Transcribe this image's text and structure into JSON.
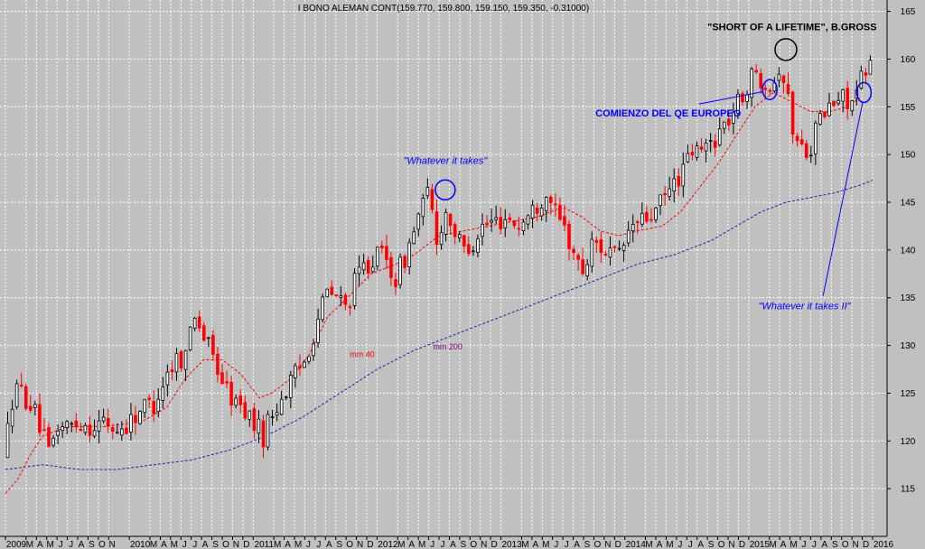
{
  "chart_data": {
    "type": "candlestick",
    "title": "I BONO ALEMAN CONT(159.770, 159.800, 159.150, 159.350, -0.31000)",
    "ylim": [
      110,
      166
    ],
    "yticks": [
      115,
      120,
      125,
      130,
      135,
      140,
      145,
      150,
      155,
      160,
      165
    ],
    "x_range": [
      2009.0,
      2016.0
    ],
    "grid": true,
    "colors": {
      "background": "#c0c0c0",
      "up": "#000000",
      "down": "#ff0000",
      "mm40": "#ff0000",
      "mm200": "#2a1f9a",
      "annotation": "#0000ff"
    },
    "x_tick_labels": [
      {
        "t": 2009.0,
        "label": "2009"
      },
      {
        "t": 2009.1667,
        "label": "M"
      },
      {
        "t": 2009.25,
        "label": "A"
      },
      {
        "t": 2009.3333,
        "label": "M"
      },
      {
        "t": 2009.4167,
        "label": "J"
      },
      {
        "t": 2009.5,
        "label": "J"
      },
      {
        "t": 2009.5833,
        "label": "A"
      },
      {
        "t": 2009.6667,
        "label": "S"
      },
      {
        "t": 2009.75,
        "label": "O"
      },
      {
        "t": 2009.8333,
        "label": "N"
      },
      {
        "t": 2010.0,
        "label": "2010"
      },
      {
        "t": 2010.1667,
        "label": "M"
      },
      {
        "t": 2010.25,
        "label": "A"
      },
      {
        "t": 2010.3333,
        "label": "M"
      },
      {
        "t": 2010.4167,
        "label": "J"
      },
      {
        "t": 2010.5,
        "label": "J"
      },
      {
        "t": 2010.5833,
        "label": "A"
      },
      {
        "t": 2010.6667,
        "label": "S"
      },
      {
        "t": 2010.75,
        "label": "O"
      },
      {
        "t": 2010.8333,
        "label": "N"
      },
      {
        "t": 2010.9167,
        "label": "D"
      },
      {
        "t": 2011.0,
        "label": "2011"
      },
      {
        "t": 2011.1667,
        "label": "M"
      },
      {
        "t": 2011.25,
        "label": "A"
      },
      {
        "t": 2011.3333,
        "label": "M"
      },
      {
        "t": 2011.4167,
        "label": "J"
      },
      {
        "t": 2011.5,
        "label": "J"
      },
      {
        "t": 2011.5833,
        "label": "A"
      },
      {
        "t": 2011.6667,
        "label": "S"
      },
      {
        "t": 2011.75,
        "label": "O"
      },
      {
        "t": 2011.8333,
        "label": "N"
      },
      {
        "t": 2011.9167,
        "label": "D"
      },
      {
        "t": 2012.0,
        "label": "2012"
      },
      {
        "t": 2012.1667,
        "label": "M"
      },
      {
        "t": 2012.25,
        "label": "A"
      },
      {
        "t": 2012.3333,
        "label": "M"
      },
      {
        "t": 2012.4167,
        "label": "J"
      },
      {
        "t": 2012.5,
        "label": "J"
      },
      {
        "t": 2012.5833,
        "label": "A"
      },
      {
        "t": 2012.6667,
        "label": "S"
      },
      {
        "t": 2012.75,
        "label": "O"
      },
      {
        "t": 2012.8333,
        "label": "N"
      },
      {
        "t": 2012.9167,
        "label": "D"
      },
      {
        "t": 2013.0,
        "label": "2013"
      },
      {
        "t": 2013.1667,
        "label": "M"
      },
      {
        "t": 2013.25,
        "label": "A"
      },
      {
        "t": 2013.3333,
        "label": "M"
      },
      {
        "t": 2013.4167,
        "label": "J"
      },
      {
        "t": 2013.5,
        "label": "J"
      },
      {
        "t": 2013.5833,
        "label": "A"
      },
      {
        "t": 2013.6667,
        "label": "S"
      },
      {
        "t": 2013.75,
        "label": "O"
      },
      {
        "t": 2013.8333,
        "label": "N"
      },
      {
        "t": 2013.9167,
        "label": "D"
      },
      {
        "t": 2014.0,
        "label": "2014"
      },
      {
        "t": 2014.1667,
        "label": "M"
      },
      {
        "t": 2014.25,
        "label": "A"
      },
      {
        "t": 2014.3333,
        "label": "M"
      },
      {
        "t": 2014.4167,
        "label": "J"
      },
      {
        "t": 2014.5,
        "label": "J"
      },
      {
        "t": 2014.5833,
        "label": "A"
      },
      {
        "t": 2014.6667,
        "label": "S"
      },
      {
        "t": 2014.75,
        "label": "O"
      },
      {
        "t": 2014.8333,
        "label": "N"
      },
      {
        "t": 2014.9167,
        "label": "D"
      },
      {
        "t": 2015.0,
        "label": "2015"
      },
      {
        "t": 2015.1667,
        "label": "M"
      },
      {
        "t": 2015.25,
        "label": "A"
      },
      {
        "t": 2015.3333,
        "label": "M"
      },
      {
        "t": 2015.4167,
        "label": "J"
      },
      {
        "t": 2015.5,
        "label": "J"
      },
      {
        "t": 2015.5833,
        "label": "A"
      },
      {
        "t": 2015.6667,
        "label": "S"
      },
      {
        "t": 2015.75,
        "label": "O"
      },
      {
        "t": 2015.8333,
        "label": "N"
      },
      {
        "t": 2015.9167,
        "label": "D"
      },
      {
        "t": 2016.0,
        "label": "2016"
      }
    ],
    "price_path": [
      {
        "t": 2009.0,
        "v": 118.5
      },
      {
        "t": 2009.04,
        "v": 124.0
      },
      {
        "t": 2009.1,
        "v": 125.5
      },
      {
        "t": 2009.2,
        "v": 124.0
      },
      {
        "t": 2009.28,
        "v": 121.5
      },
      {
        "t": 2009.35,
        "v": 118.5
      },
      {
        "t": 2009.42,
        "v": 121.5
      },
      {
        "t": 2009.5,
        "v": 121.5
      },
      {
        "t": 2009.6,
        "v": 122.0
      },
      {
        "t": 2009.7,
        "v": 121.5
      },
      {
        "t": 2009.8,
        "v": 122.0
      },
      {
        "t": 2009.9,
        "v": 121.0
      },
      {
        "t": 2010.0,
        "v": 122.0
      },
      {
        "t": 2010.1,
        "v": 123.5
      },
      {
        "t": 2010.2,
        "v": 124.0
      },
      {
        "t": 2010.3,
        "v": 127.0
      },
      {
        "t": 2010.4,
        "v": 129.0
      },
      {
        "t": 2010.45,
        "v": 128.5
      },
      {
        "t": 2010.52,
        "v": 134.0
      },
      {
        "t": 2010.6,
        "v": 131.0
      },
      {
        "t": 2010.7,
        "v": 128.0
      },
      {
        "t": 2010.78,
        "v": 125.5
      },
      {
        "t": 2010.85,
        "v": 124.0
      },
      {
        "t": 2010.95,
        "v": 123.0
      },
      {
        "t": 2011.0,
        "v": 122.0
      },
      {
        "t": 2011.08,
        "v": 120.5
      },
      {
        "t": 2011.12,
        "v": 122.0
      },
      {
        "t": 2011.2,
        "v": 124.0
      },
      {
        "t": 2011.3,
        "v": 126.0
      },
      {
        "t": 2011.4,
        "v": 128.0
      },
      {
        "t": 2011.48,
        "v": 131.0
      },
      {
        "t": 2011.55,
        "v": 134.0
      },
      {
        "t": 2011.6,
        "v": 135.5
      },
      {
        "t": 2011.68,
        "v": 135.0
      },
      {
        "t": 2011.75,
        "v": 134.0
      },
      {
        "t": 2011.85,
        "v": 137.5
      },
      {
        "t": 2011.95,
        "v": 139.0
      },
      {
        "t": 2012.05,
        "v": 139.5
      },
      {
        "t": 2012.15,
        "v": 137.0
      },
      {
        "t": 2012.25,
        "v": 140.0
      },
      {
        "t": 2012.33,
        "v": 143.5
      },
      {
        "t": 2012.42,
        "v": 146.0
      },
      {
        "t": 2012.48,
        "v": 141.0
      },
      {
        "t": 2012.55,
        "v": 144.0
      },
      {
        "t": 2012.6,
        "v": 143.0
      },
      {
        "t": 2012.68,
        "v": 140.0
      },
      {
        "t": 2012.75,
        "v": 140.5
      },
      {
        "t": 2012.85,
        "v": 142.5
      },
      {
        "t": 2012.95,
        "v": 143.0
      },
      {
        "t": 2013.05,
        "v": 143.5
      },
      {
        "t": 2013.15,
        "v": 142.5
      },
      {
        "t": 2013.25,
        "v": 144.0
      },
      {
        "t": 2013.33,
        "v": 145.5
      },
      {
        "t": 2013.4,
        "v": 146.0
      },
      {
        "t": 2013.45,
        "v": 143.0
      },
      {
        "t": 2013.5,
        "v": 142.5
      },
      {
        "t": 2013.58,
        "v": 140.0
      },
      {
        "t": 2013.65,
        "v": 137.5
      },
      {
        "t": 2013.7,
        "v": 139.0
      },
      {
        "t": 2013.75,
        "v": 141.0
      },
      {
        "t": 2013.85,
        "v": 140.0
      },
      {
        "t": 2013.95,
        "v": 139.0
      },
      {
        "t": 2014.05,
        "v": 142.5
      },
      {
        "t": 2014.15,
        "v": 143.0
      },
      {
        "t": 2014.25,
        "v": 144.0
      },
      {
        "t": 2014.35,
        "v": 146.0
      },
      {
        "t": 2014.45,
        "v": 148.0
      },
      {
        "t": 2014.5,
        "v": 149.0
      },
      {
        "t": 2014.55,
        "v": 150.5
      },
      {
        "t": 2014.6,
        "v": 150.0
      },
      {
        "t": 2014.7,
        "v": 151.5
      },
      {
        "t": 2014.8,
        "v": 153.0
      },
      {
        "t": 2014.9,
        "v": 155.0
      },
      {
        "t": 2015.0,
        "v": 157.5
      },
      {
        "t": 2015.05,
        "v": 158.5
      },
      {
        "t": 2015.12,
        "v": 158.0
      },
      {
        "t": 2015.2,
        "v": 157.5
      },
      {
        "t": 2015.25,
        "v": 159.5
      },
      {
        "t": 2015.3,
        "v": 157.0
      },
      {
        "t": 2015.35,
        "v": 153.0
      },
      {
        "t": 2015.42,
        "v": 150.5
      },
      {
        "t": 2015.5,
        "v": 151.0
      },
      {
        "t": 2015.55,
        "v": 153.0
      },
      {
        "t": 2015.62,
        "v": 154.5
      },
      {
        "t": 2015.7,
        "v": 155.5
      },
      {
        "t": 2015.78,
        "v": 156.0
      },
      {
        "t": 2015.85,
        "v": 155.5
      },
      {
        "t": 2015.9,
        "v": 157.5
      },
      {
        "t": 2015.95,
        "v": 158.5
      },
      {
        "t": 2016.0,
        "v": 159.5
      }
    ],
    "candle_count": 190,
    "series": [
      {
        "name": "mm 40",
        "points": [
          {
            "t": 2009.0,
            "v": 114.5
          },
          {
            "t": 2009.1,
            "v": 116.0
          },
          {
            "t": 2009.2,
            "v": 118.5
          },
          {
            "t": 2009.3,
            "v": 120.5
          },
          {
            "t": 2009.5,
            "v": 121.5
          },
          {
            "t": 2009.8,
            "v": 121.5
          },
          {
            "t": 2010.1,
            "v": 122.0
          },
          {
            "t": 2010.3,
            "v": 123.5
          },
          {
            "t": 2010.45,
            "v": 126.5
          },
          {
            "t": 2010.6,
            "v": 128.5
          },
          {
            "t": 2010.75,
            "v": 128.5
          },
          {
            "t": 2010.9,
            "v": 127.0
          },
          {
            "t": 2011.05,
            "v": 124.5
          },
          {
            "t": 2011.15,
            "v": 125.0
          },
          {
            "t": 2011.3,
            "v": 126.5
          },
          {
            "t": 2011.45,
            "v": 129.0
          },
          {
            "t": 2011.6,
            "v": 133.0
          },
          {
            "t": 2011.8,
            "v": 135.5
          },
          {
            "t": 2011.95,
            "v": 137.5
          },
          {
            "t": 2012.15,
            "v": 138.5
          },
          {
            "t": 2012.3,
            "v": 139.5
          },
          {
            "t": 2012.5,
            "v": 141.5
          },
          {
            "t": 2012.7,
            "v": 142.0
          },
          {
            "t": 2012.9,
            "v": 142.5
          },
          {
            "t": 2013.1,
            "v": 143.0
          },
          {
            "t": 2013.3,
            "v": 143.5
          },
          {
            "t": 2013.5,
            "v": 144.5
          },
          {
            "t": 2013.65,
            "v": 143.5
          },
          {
            "t": 2013.8,
            "v": 142.0
          },
          {
            "t": 2013.95,
            "v": 141.5
          },
          {
            "t": 2014.1,
            "v": 142.0
          },
          {
            "t": 2014.3,
            "v": 142.5
          },
          {
            "t": 2014.45,
            "v": 144.0
          },
          {
            "t": 2014.6,
            "v": 146.5
          },
          {
            "t": 2014.75,
            "v": 149.0
          },
          {
            "t": 2014.9,
            "v": 152.0
          },
          {
            "t": 2015.05,
            "v": 155.0
          },
          {
            "t": 2015.2,
            "v": 156.5
          },
          {
            "t": 2015.35,
            "v": 155.5
          },
          {
            "t": 2015.5,
            "v": 154.5
          },
          {
            "t": 2015.65,
            "v": 154.5
          },
          {
            "t": 2015.8,
            "v": 155.0
          },
          {
            "t": 2015.9,
            "v": 156.0
          }
        ]
      },
      {
        "name": "mm 200",
        "points": [
          {
            "t": 2009.0,
            "v": 117.0
          },
          {
            "t": 2009.3,
            "v": 117.5
          },
          {
            "t": 2009.6,
            "v": 117.0
          },
          {
            "t": 2009.9,
            "v": 117.0
          },
          {
            "t": 2010.2,
            "v": 117.5
          },
          {
            "t": 2010.5,
            "v": 118.0
          },
          {
            "t": 2010.8,
            "v": 119.0
          },
          {
            "t": 2011.1,
            "v": 120.5
          },
          {
            "t": 2011.4,
            "v": 122.5
          },
          {
            "t": 2011.7,
            "v": 125.0
          },
          {
            "t": 2012.0,
            "v": 127.5
          },
          {
            "t": 2012.3,
            "v": 129.5
          },
          {
            "t": 2012.6,
            "v": 131.0
          },
          {
            "t": 2012.9,
            "v": 132.5
          },
          {
            "t": 2013.2,
            "v": 134.0
          },
          {
            "t": 2013.5,
            "v": 135.5
          },
          {
            "t": 2013.8,
            "v": 137.0
          },
          {
            "t": 2014.1,
            "v": 138.5
          },
          {
            "t": 2014.4,
            "v": 139.5
          },
          {
            "t": 2014.7,
            "v": 141.0
          },
          {
            "t": 2014.9,
            "v": 142.5
          },
          {
            "t": 2015.1,
            "v": 144.0
          },
          {
            "t": 2015.3,
            "v": 145.0
          },
          {
            "t": 2015.5,
            "v": 145.5
          },
          {
            "t": 2015.7,
            "v": 146.0
          },
          {
            "t": 2015.9,
            "v": 146.8
          },
          {
            "t": 2016.0,
            "v": 147.3
          }
        ]
      }
    ],
    "annotations": [
      {
        "text": "\"SHORT OF A LIFETIME\", B.GROSS",
        "t": 2015.35,
        "v": 163.0,
        "color": "#000000",
        "bold": true
      },
      {
        "text": "COMIENZO DEL QE EUROPEO",
        "t": 2014.35,
        "v": 154.0,
        "color": "#0000ff",
        "bold": true
      },
      {
        "text": "\"Whatever it takes\"",
        "t": 2012.55,
        "v": 149.0,
        "color": "#0000ff",
        "italic": true
      },
      {
        "text": "\"Whatever it takes II\"",
        "t": 2015.45,
        "v": 133.8,
        "color": "#0000ff",
        "italic": true
      },
      {
        "text": "mm 40",
        "t": 2011.88,
        "v": 128.8,
        "color": "#ff0000"
      },
      {
        "text": "mm 200",
        "t": 2012.57,
        "v": 129.6,
        "color": "#800080"
      }
    ],
    "circles": [
      {
        "t": 2015.3,
        "v": 161.0,
        "rx": 12,
        "ry": 12,
        "color": "#000000"
      },
      {
        "t": 2015.17,
        "v": 156.8,
        "rx": 8,
        "ry": 11,
        "color": "#0000ff"
      },
      {
        "t": 2015.93,
        "v": 156.5,
        "rx": 8,
        "ry": 11,
        "color": "#0000ff"
      },
      {
        "t": 2012.55,
        "v": 146.3,
        "rx": 11,
        "ry": 11,
        "color": "#0000ff"
      }
    ],
    "arrows": [
      {
        "from": {
          "t": 2014.6,
          "v": 155.3
        },
        "to": {
          "t": 2015.12,
          "v": 156.6
        },
        "color": "#0000ff"
      },
      {
        "from": {
          "t": 2015.6,
          "v": 135.2
        },
        "to": {
          "t": 2015.92,
          "v": 155.5
        },
        "color": "#0000ff"
      }
    ]
  }
}
